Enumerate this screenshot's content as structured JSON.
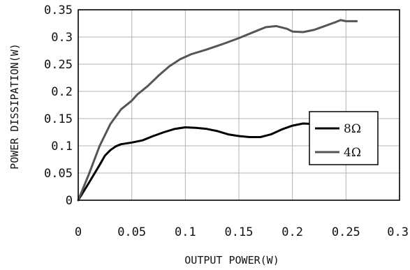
{
  "chart_data": {
    "type": "line",
    "title": "",
    "xlabel": "OUTPUT POWER(W)",
    "ylabel": "POWER DISSIPATION(W)",
    "xlim": [
      0,
      0.3
    ],
    "ylim": [
      0,
      0.35
    ],
    "x_ticks": [
      "0",
      "0.05",
      "0.1",
      "0.15",
      "0.2",
      "0.25",
      "0.3"
    ],
    "y_ticks": [
      "0",
      "0.05",
      "0.1",
      "0.15",
      "0.2",
      "0.25",
      "0.3",
      "0.35"
    ],
    "grid": true,
    "legend_position": "right",
    "series": [
      {
        "name": "8Ω",
        "color": "#000000",
        "points": [
          [
            0,
            0
          ],
          [
            0.01,
            0.032
          ],
          [
            0.02,
            0.065
          ],
          [
            0.025,
            0.082
          ],
          [
            0.03,
            0.092
          ],
          [
            0.035,
            0.099
          ],
          [
            0.04,
            0.103
          ],
          [
            0.05,
            0.106
          ],
          [
            0.06,
            0.11
          ],
          [
            0.07,
            0.118
          ],
          [
            0.08,
            0.125
          ],
          [
            0.09,
            0.131
          ],
          [
            0.1,
            0.134
          ],
          [
            0.11,
            0.133
          ],
          [
            0.12,
            0.131
          ],
          [
            0.13,
            0.127
          ],
          [
            0.14,
            0.121
          ],
          [
            0.15,
            0.118
          ],
          [
            0.16,
            0.116
          ],
          [
            0.17,
            0.116
          ],
          [
            0.18,
            0.121
          ],
          [
            0.19,
            0.13
          ],
          [
            0.2,
            0.137
          ],
          [
            0.21,
            0.141
          ],
          [
            0.22,
            0.14
          ]
        ]
      },
      {
        "name": "4Ω",
        "color": "#555555",
        "points": [
          [
            0,
            0
          ],
          [
            0.01,
            0.048
          ],
          [
            0.02,
            0.1
          ],
          [
            0.03,
            0.14
          ],
          [
            0.04,
            0.167
          ],
          [
            0.05,
            0.183
          ],
          [
            0.055,
            0.194
          ],
          [
            0.065,
            0.21
          ],
          [
            0.075,
            0.229
          ],
          [
            0.085,
            0.246
          ],
          [
            0.095,
            0.259
          ],
          [
            0.105,
            0.268
          ],
          [
            0.12,
            0.277
          ],
          [
            0.135,
            0.287
          ],
          [
            0.15,
            0.298
          ],
          [
            0.165,
            0.31
          ],
          [
            0.175,
            0.318
          ],
          [
            0.185,
            0.32
          ],
          [
            0.195,
            0.315
          ],
          [
            0.2,
            0.31
          ],
          [
            0.21,
            0.309
          ],
          [
            0.22,
            0.313
          ],
          [
            0.23,
            0.32
          ],
          [
            0.24,
            0.327
          ],
          [
            0.245,
            0.331
          ],
          [
            0.25,
            0.329
          ],
          [
            0.26,
            0.329
          ]
        ]
      }
    ]
  }
}
